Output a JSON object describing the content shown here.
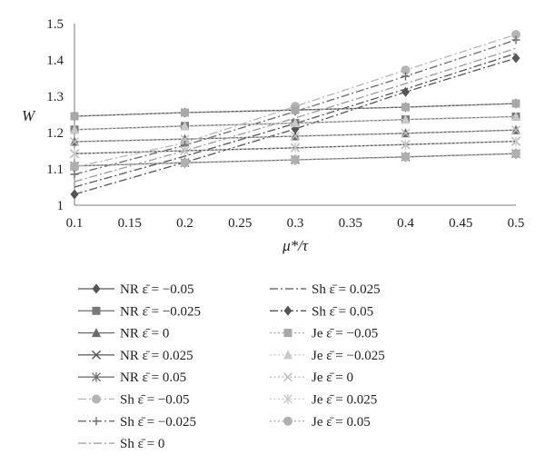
{
  "chart_data": {
    "type": "line",
    "xlabel": "μ*/τ",
    "ylabel": "W",
    "xlim": [
      0.1,
      0.5
    ],
    "ylim": [
      1,
      1.5
    ],
    "x_ticks": [
      "0.1",
      "0.15",
      "0.2",
      "0.25",
      "0.3",
      "0.35",
      "0.4",
      "0.45",
      "0.5"
    ],
    "y_ticks": [
      "1",
      "1.1",
      "1.2",
      "1.3",
      "1.4",
      "1.5"
    ],
    "grid": false,
    "legend_position": "bottom",
    "x": [
      0.1,
      0.2,
      0.3,
      0.4,
      0.5
    ],
    "series": [
      {
        "name": "NR ε̄ = −0.05",
        "model": "NR",
        "marker": "diamond",
        "color": "#555555",
        "dash": "solid",
        "values": [
          1.245,
          1.255,
          1.262,
          1.27,
          1.28
        ]
      },
      {
        "name": "NR ε̄ = −0.025",
        "model": "NR",
        "marker": "square",
        "color": "#7a7a7a",
        "dash": "solid",
        "values": [
          1.208,
          1.218,
          1.226,
          1.236,
          1.244
        ]
      },
      {
        "name": "NR ε̄ = 0",
        "model": "NR",
        "marker": "triangle",
        "color": "#6a6a6a",
        "dash": "solid",
        "values": [
          1.175,
          1.182,
          1.19,
          1.198,
          1.207
        ]
      },
      {
        "name": "NR ε̄ = 0.025",
        "model": "NR",
        "marker": "x",
        "color": "#555555",
        "dash": "solid",
        "values": [
          1.142,
          1.15,
          1.158,
          1.167,
          1.176
        ]
      },
      {
        "name": "NR ε̄ = 0.05",
        "model": "NR",
        "marker": "asterisk",
        "color": "#707070",
        "dash": "solid",
        "values": [
          1.108,
          1.117,
          1.125,
          1.133,
          1.142
        ]
      },
      {
        "name": "Sh ε̄ = −0.05",
        "model": "Sh",
        "marker": "circle",
        "color": "#b5b5b5",
        "dash": "dashdot",
        "values": [
          1.105,
          1.172,
          1.272,
          1.372,
          1.47
        ]
      },
      {
        "name": "Sh ε̄ = −0.025",
        "model": "Sh",
        "marker": "plus",
        "color": "#6a6a6a",
        "dash": "dashdot",
        "values": [
          1.085,
          1.165,
          1.258,
          1.355,
          1.455
        ]
      },
      {
        "name": "Sh ε̄ = 0",
        "model": "Sh",
        "marker": "none",
        "color": "#9a9a9a",
        "dash": "dashdot",
        "values": [
          1.065,
          1.15,
          1.24,
          1.335,
          1.432
        ]
      },
      {
        "name": "Sh ε̄ = 0.025",
        "model": "Sh",
        "marker": "none",
        "color": "#555555",
        "dash": "dashdot",
        "values": [
          1.05,
          1.135,
          1.225,
          1.32,
          1.418
        ]
      },
      {
        "name": "Sh ε̄ = 0.05",
        "model": "Sh",
        "marker": "diamond",
        "color": "#555555",
        "dash": "dashdot",
        "values": [
          1.03,
          1.118,
          1.21,
          1.312,
          1.405
        ]
      },
      {
        "name": "Je ε̄ = −0.05",
        "model": "Je",
        "marker": "square",
        "color": "#a8a8a8",
        "dash": "dotted",
        "values": [
          1.245,
          1.255,
          1.262,
          1.27,
          1.28
        ]
      },
      {
        "name": "Je ε̄ = −0.025",
        "model": "Je",
        "marker": "triangle",
        "color": "#c8c8c8",
        "dash": "dotted",
        "values": [
          1.208,
          1.218,
          1.226,
          1.236,
          1.244
        ]
      },
      {
        "name": "Je ε̄ = 0",
        "model": "Je",
        "marker": "x",
        "color": "#bdbdbd",
        "dash": "dotted",
        "values": [
          1.175,
          1.182,
          1.19,
          1.198,
          1.207
        ]
      },
      {
        "name": "Je ε̄ = 0.025",
        "model": "Je",
        "marker": "asterisk",
        "color": "#c8c8c8",
        "dash": "dotted",
        "values": [
          1.142,
          1.15,
          1.158,
          1.167,
          1.176
        ]
      },
      {
        "name": "Je ε̄ = 0.05",
        "model": "Je",
        "marker": "circle",
        "color": "#b0b0b0",
        "dash": "dotted",
        "values": [
          1.108,
          1.117,
          1.125,
          1.133,
          1.142
        ]
      }
    ]
  }
}
